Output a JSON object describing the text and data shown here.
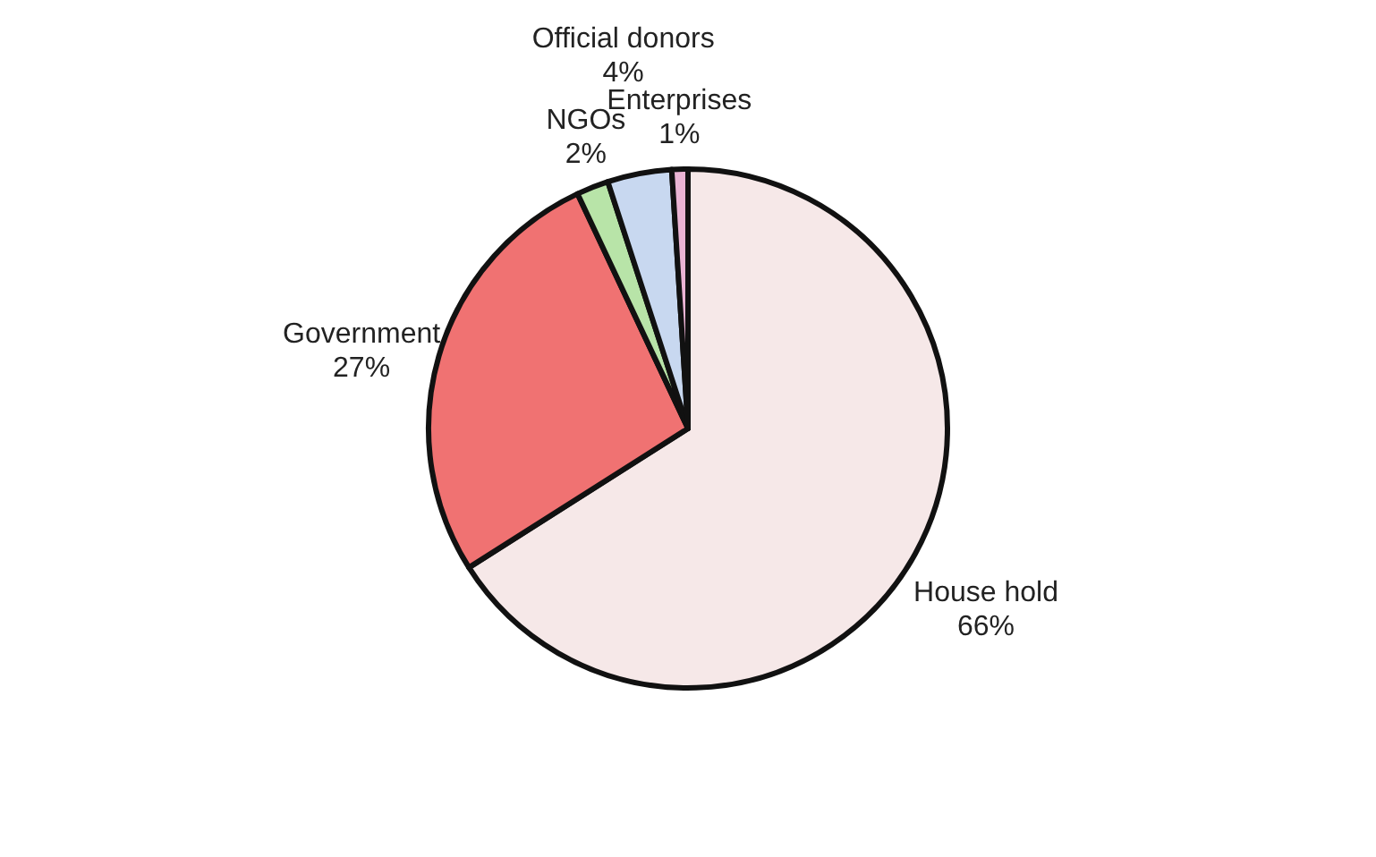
{
  "chart_data": {
    "type": "pie",
    "categories": [
      "House hold",
      "Government",
      "NGOs",
      "Official donors",
      "Enterprises"
    ],
    "values": [
      66,
      27,
      2,
      4,
      1
    ],
    "colors": [
      "#f6e8e8",
      "#f07272",
      "#b8e4a8",
      "#c8d8f0",
      "#eab4d4"
    ],
    "value_labels": [
      "66%",
      "27%",
      "2%",
      "4%",
      "1%"
    ]
  }
}
